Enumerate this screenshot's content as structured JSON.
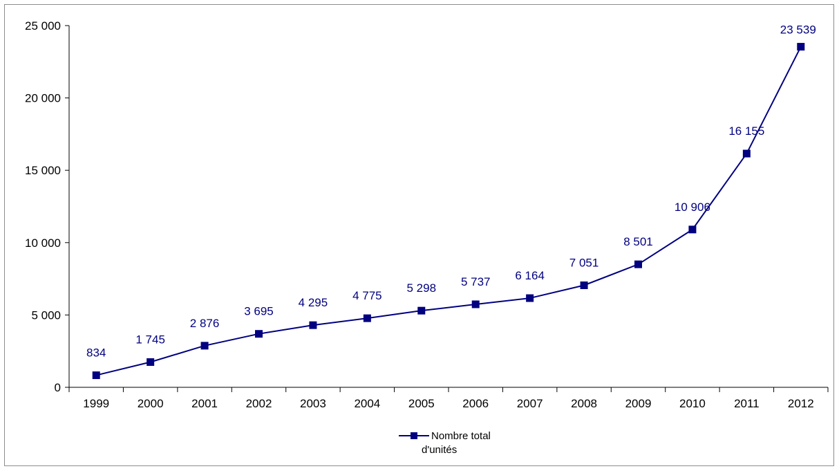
{
  "chart_data": {
    "type": "line",
    "title": "",
    "xlabel": "",
    "ylabel": "",
    "categories": [
      "1999",
      "2000",
      "2001",
      "2002",
      "2003",
      "2004",
      "2005",
      "2006",
      "2007",
      "2008",
      "2009",
      "2010",
      "2011",
      "2012"
    ],
    "series": [
      {
        "name": "Nombre total d'unités",
        "name_lines": [
          "Nombre total",
          "d'unités"
        ],
        "values": [
          834,
          1745,
          2876,
          3695,
          4295,
          4775,
          5298,
          5737,
          6164,
          7051,
          8501,
          10906,
          16155,
          23539
        ],
        "labels": [
          "834",
          "1 745",
          "2 876",
          "3 695",
          "4 295",
          "4 775",
          "5 298",
          "5 737",
          "6 164",
          "7 051",
          "8 501",
          "10 906",
          "16 155",
          "23 539"
        ],
        "color": "#000080",
        "marker": "square"
      }
    ],
    "ylim": [
      0,
      25000
    ],
    "yticks": [
      0,
      5000,
      10000,
      15000,
      20000,
      25000
    ],
    "ytick_labels": [
      "0",
      "5 000",
      "10 000",
      "15 000",
      "20 000",
      "25 000"
    ],
    "grid": false,
    "legend_position": "bottom-center"
  }
}
